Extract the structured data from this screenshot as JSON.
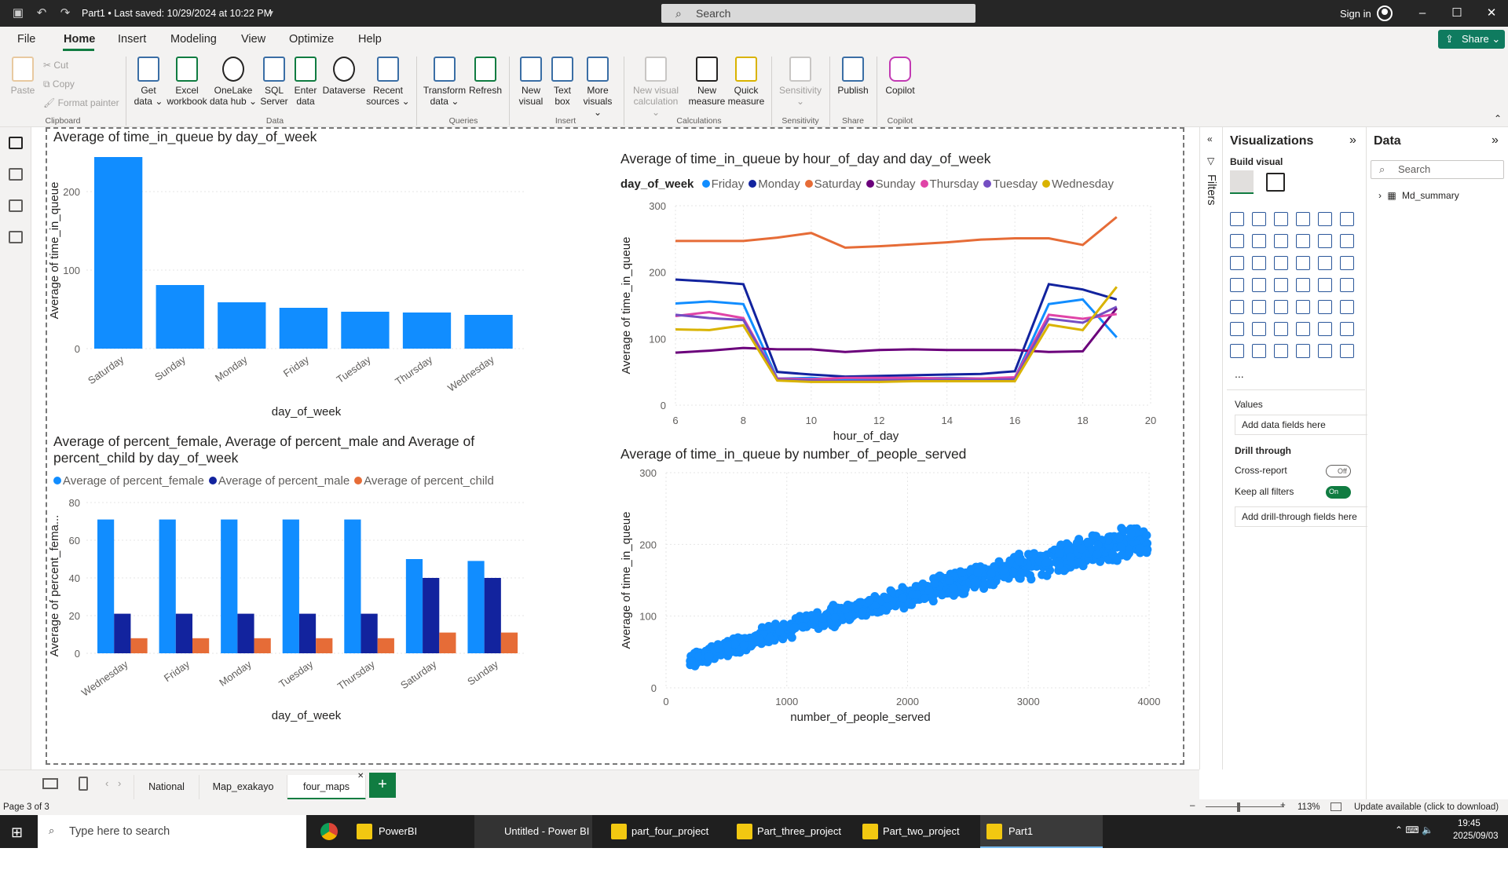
{
  "titlebar": {
    "title": "Part1 • Last saved: 10/29/2024 at 10:22 PM",
    "search_placeholder": "Search",
    "sign_in": "Sign in"
  },
  "menu": {
    "items": [
      "File",
      "Home",
      "Insert",
      "Modeling",
      "View",
      "Optimize",
      "Help"
    ],
    "active": "Home",
    "share": "Share"
  },
  "ribbon": {
    "clipboard": {
      "paste": "Paste",
      "cut": "Cut",
      "copy": "Copy",
      "format_painter": "Format painter",
      "group": "Clipboard"
    },
    "data": {
      "buttons": [
        {
          "l1": "Get",
          "l2": "data ⌄"
        },
        {
          "l1": "Excel",
          "l2": "workbook"
        },
        {
          "l1": "OneLake",
          "l2": "data hub ⌄"
        },
        {
          "l1": "SQL",
          "l2": "Server"
        },
        {
          "l1": "Enter",
          "l2": "data"
        },
        {
          "l1": "Dataverse",
          "l2": ""
        },
        {
          "l1": "Recent",
          "l2": "sources ⌄"
        }
      ],
      "group": "Data"
    },
    "queries": {
      "buttons": [
        {
          "l1": "Transform",
          "l2": "data ⌄"
        },
        {
          "l1": "Refresh",
          "l2": ""
        }
      ],
      "group": "Queries"
    },
    "insert": {
      "buttons": [
        {
          "l1": "New",
          "l2": "visual"
        },
        {
          "l1": "Text",
          "l2": "box"
        },
        {
          "l1": "More",
          "l2": "visuals ⌄"
        }
      ],
      "group": "Insert"
    },
    "calculations": {
      "buttons": [
        {
          "l1": "New visual",
          "l2": "calculation ⌄"
        },
        {
          "l1": "New",
          "l2": "measure"
        },
        {
          "l1": "Quick",
          "l2": "measure"
        }
      ],
      "group": "Calculations"
    },
    "sensitivity": {
      "buttons": [
        {
          "l1": "Sensitivity",
          "l2": "⌄"
        }
      ],
      "group": "Sensitivity"
    },
    "share": {
      "buttons": [
        {
          "l1": "Publish",
          "l2": ""
        }
      ],
      "group": "Share"
    },
    "copilot": {
      "buttons": [
        {
          "l1": "Copilot",
          "l2": ""
        }
      ],
      "group": "Copilot"
    }
  },
  "chart_data": [
    {
      "type": "bar",
      "title": "Average of time_in_queue by day_of_week",
      "xlabel": "day_of_week",
      "ylabel": "Average of time_in_queue",
      "categories": [
        "Saturday",
        "Sunday",
        "Monday",
        "Friday",
        "Tuesday",
        "Thursday",
        "Wednesday"
      ],
      "values": [
        244,
        81,
        59,
        52,
        47,
        46,
        43
      ],
      "ylim": [
        0,
        250
      ],
      "yticks": [
        0,
        100,
        200
      ],
      "color": "#118dff"
    },
    {
      "type": "line",
      "title": "Average of time_in_queue by hour_of_day and day_of_week",
      "legend_title": "day_of_week",
      "xlabel": "hour_of_day",
      "ylabel": "Average of time_in_queue",
      "x": [
        6,
        7,
        8,
        9,
        10,
        11,
        12,
        13,
        14,
        15,
        16,
        17,
        18,
        19
      ],
      "xlim": [
        6,
        20
      ],
      "xticks": [
        6,
        8,
        10,
        12,
        14,
        16,
        18,
        20
      ],
      "ylim": [
        0,
        300
      ],
      "yticks": [
        0,
        100,
        200,
        300
      ],
      "series": [
        {
          "name": "Friday",
          "color": "#118dff",
          "values": [
            153,
            156,
            152,
            40,
            41,
            38,
            39,
            40,
            41,
            40,
            41,
            152,
            159,
            102
          ]
        },
        {
          "name": "Monday",
          "color": "#12239e",
          "values": [
            189,
            186,
            182,
            50,
            46,
            43,
            44,
            45,
            46,
            47,
            51,
            182,
            174,
            159
          ]
        },
        {
          "name": "Saturday",
          "color": "#e66c37",
          "values": [
            247,
            247,
            247,
            252,
            259,
            237,
            239,
            242,
            245,
            249,
            251,
            251,
            241,
            283
          ]
        },
        {
          "name": "Sunday",
          "color": "#6b007b",
          "values": [
            79,
            82,
            86,
            84,
            84,
            80,
            83,
            84,
            83,
            83,
            83,
            80,
            81,
            146
          ]
        },
        {
          "name": "Thursday",
          "color": "#e044a7",
          "values": [
            134,
            140,
            131,
            40,
            39,
            41,
            41,
            41,
            40,
            40,
            42,
            136,
            130,
            137
          ]
        },
        {
          "name": "Tuesday",
          "color": "#744ec2",
          "values": [
            136,
            131,
            128,
            39,
            37,
            36,
            37,
            38,
            38,
            38,
            39,
            130,
            124,
            148
          ]
        },
        {
          "name": "Wednesday",
          "color": "#d9b300",
          "values": [
            114,
            113,
            120,
            37,
            35,
            35,
            35,
            36,
            36,
            36,
            36,
            121,
            113,
            178
          ]
        }
      ]
    },
    {
      "type": "bar",
      "title": "Average of percent_female, Average of percent_male and Average of percent_child by day_of_week",
      "xlabel": "day_of_week",
      "ylabel": "Average of percent_fema...",
      "categories": [
        "Wednesday",
        "Friday",
        "Monday",
        "Tuesday",
        "Thursday",
        "Saturday",
        "Sunday"
      ],
      "ylim": [
        0,
        80
      ],
      "yticks": [
        0,
        20,
        40,
        60,
        80
      ],
      "series": [
        {
          "name": "Average of percent_female",
          "color": "#118dff",
          "values": [
            71,
            71,
            71,
            71,
            71,
            50,
            49
          ]
        },
        {
          "name": "Average of percent_male",
          "color": "#12239e",
          "values": [
            21,
            21,
            21,
            21,
            21,
            40,
            40
          ]
        },
        {
          "name": "Average of percent_child",
          "color": "#e66c37",
          "values": [
            8,
            8,
            8,
            8,
            8,
            11,
            11
          ]
        }
      ]
    },
    {
      "type": "scatter",
      "title": "Average of time_in_queue by number_of_people_served",
      "xlabel": "number_of_people_served",
      "ylabel": "Average of time_in_queue",
      "xlim": [
        0,
        4000
      ],
      "xticks": [
        0,
        1000,
        2000,
        3000,
        4000
      ],
      "ylim": [
        0,
        300
      ],
      "yticks": [
        0,
        100,
        200,
        300
      ],
      "color": "#118dff",
      "trend": {
        "x_range": [
          200,
          4000
        ],
        "y_at_min": 35,
        "y_at_max": 210,
        "spread": 12,
        "count": 900
      }
    }
  ],
  "filters": {
    "label": "Filters"
  },
  "visualizations": {
    "title": "Visualizations",
    "build_visual": "Build visual",
    "values_label": "Values",
    "add_data_fields": "Add data fields here",
    "drill_through": "Drill through",
    "cross_report": "Cross-report",
    "cross_report_state": "Off",
    "keep_all_filters": "Keep all filters",
    "keep_all_filters_state": "On",
    "add_drill_through": "Add drill-through fields here",
    "more": "..."
  },
  "data_pane": {
    "title": "Data",
    "search_placeholder": "Search",
    "tables": [
      "Md_summary"
    ]
  },
  "tabs": {
    "items": [
      "National",
      "Map_exakayo",
      "four_maps"
    ],
    "active": "four_maps"
  },
  "status": {
    "page": "Page 3 of 3",
    "zoom": "113%",
    "update": "Update available (click to download)"
  },
  "taskbar": {
    "search_placeholder": "Type here to search",
    "apps": [
      "PowerBI",
      "Untitled - Power BI ...",
      "part_four_project",
      "Part_three_project",
      "Part_two_project",
      "Part1"
    ],
    "time": "19:45",
    "date": "2025/09/03"
  }
}
